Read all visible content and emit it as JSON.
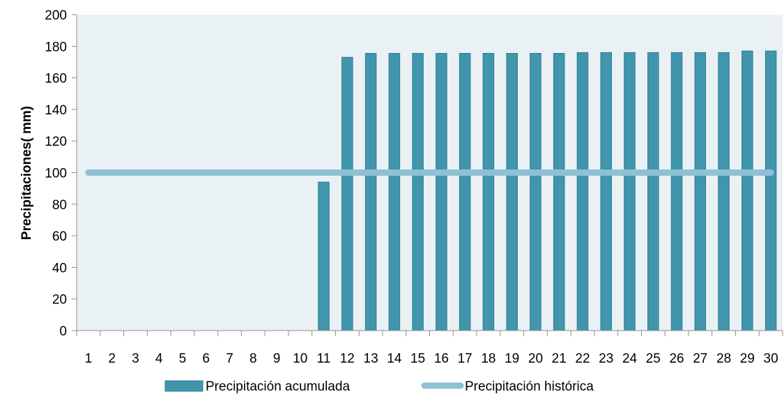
{
  "chart_data": {
    "type": "bar",
    "title": "",
    "xlabel": "",
    "ylabel": "Precipitaciones( mm)",
    "ylim": [
      0,
      200
    ],
    "yticks": [
      0,
      20,
      40,
      60,
      80,
      100,
      120,
      140,
      160,
      180,
      200
    ],
    "categories": [
      "1",
      "2",
      "3",
      "4",
      "5",
      "6",
      "7",
      "8",
      "9",
      "10",
      "11",
      "12",
      "13",
      "14",
      "15",
      "16",
      "17",
      "18",
      "19",
      "20",
      "21",
      "22",
      "23",
      "24",
      "25",
      "26",
      "27",
      "28",
      "29",
      "30"
    ],
    "grid": false,
    "legend_position": "bottom",
    "plot_background": "#eaf1f5",
    "series": [
      {
        "name": "Precipitación acumulada",
        "type": "bar",
        "color": "#4096ac",
        "values": [
          0,
          0,
          0,
          0,
          0,
          0,
          0,
          0,
          0,
          0,
          94,
          173,
          175.5,
          175.5,
          175.5,
          175.5,
          175.5,
          175.5,
          175.5,
          175.5,
          175.5,
          176,
          176,
          176,
          176,
          176,
          176,
          176,
          177,
          177
        ]
      },
      {
        "name": "Precipitación histórica",
        "type": "line",
        "color": "#8fc1d4",
        "values": [
          100,
          100,
          100,
          100,
          100,
          100,
          100,
          100,
          100,
          100,
          100,
          100,
          100,
          100,
          100,
          100,
          100,
          100,
          100,
          100,
          100,
          100,
          100,
          100,
          100,
          100,
          100,
          100,
          100,
          100
        ]
      }
    ]
  }
}
